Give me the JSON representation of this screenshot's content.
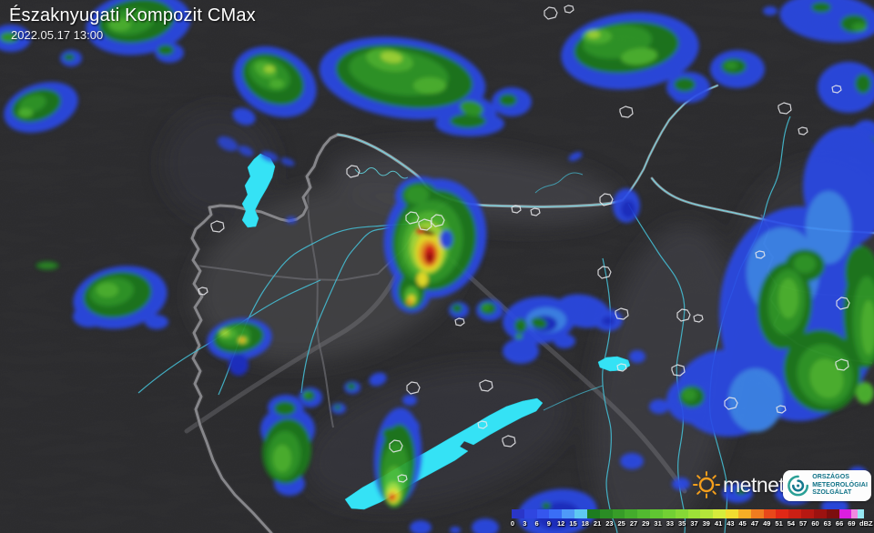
{
  "header": {
    "title": "Északnyugati Kompozit CMax",
    "datetime": "2022.05.17 13:00"
  },
  "colorbar": {
    "unit": "dBZ",
    "ticks": [
      "0",
      "3",
      "6",
      "9",
      "12",
      "15",
      "18",
      "21",
      "23",
      "25",
      "27",
      "29",
      "31",
      "33",
      "35",
      "37",
      "39",
      "41",
      "43",
      "45",
      "47",
      "49",
      "51",
      "54",
      "57",
      "60",
      "63",
      "66",
      "69"
    ],
    "segment_colors": [
      "#2a36c8",
      "#2f46e0",
      "#3556ee",
      "#3a6ef6",
      "#4f9af8",
      "#5ec8f2",
      "#1d7c20",
      "#2a8c24",
      "#379c28",
      "#44ac2c",
      "#52ba30",
      "#60c632",
      "#72d034",
      "#86d836",
      "#9ce038",
      "#b4e63a",
      "#d6ec3c",
      "#f2dc30",
      "#f6ae26",
      "#f07c20",
      "#e8481a",
      "#e02816",
      "#cc2014",
      "#b61812",
      "#9c1210",
      "#7c0e0e",
      "#dc1ee0",
      "#f08ae0|#96e8f2"
    ]
  },
  "branding": {
    "metnet_label": "metnet",
    "omsz_lines": [
      "ORSZÁGOS",
      "METEOROLÓGIAI",
      "SZOLGÁLAT"
    ]
  }
}
